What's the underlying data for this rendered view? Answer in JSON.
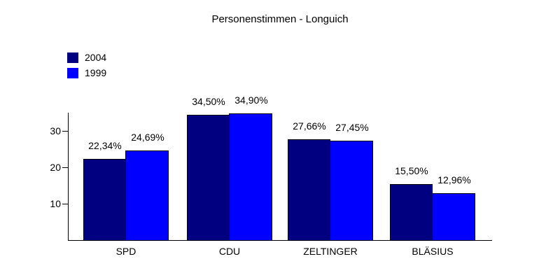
{
  "title": "Personenstimmen - Longuich",
  "chart_data": {
    "type": "bar",
    "title": "Personenstimmen - Longuich",
    "categories": [
      "SPD",
      "CDU",
      "ZELTINGER",
      "BLÄSIUS"
    ],
    "series": [
      {
        "name": "2004",
        "color": "#000080",
        "values": [
          22.34,
          34.5,
          27.66,
          15.5
        ],
        "labels": [
          "22,34%",
          "34,50%",
          "27,66%",
          "15,50%"
        ]
      },
      {
        "name": "1999",
        "color": "#0000ff",
        "values": [
          24.69,
          34.9,
          27.45,
          12.96
        ],
        "labels": [
          "24,69%",
          "34,90%",
          "27,45%",
          "12,96%"
        ]
      }
    ],
    "xlabel": "",
    "ylabel": "",
    "y_ticks": [
      10,
      20,
      30
    ],
    "ylim": [
      0,
      35
    ],
    "grid": false,
    "legend_position": "top-left",
    "value_label_suffix": "%",
    "decimal_separator": ","
  }
}
